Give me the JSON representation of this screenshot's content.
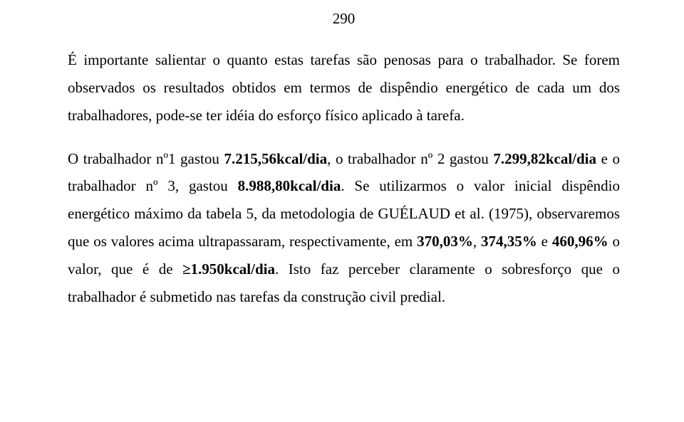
{
  "page_number": "290",
  "paragraph1": "É importante salientar o quanto estas tarefas são penosas para o trabalhador. Se forem observados os resultados obtidos em termos de dispêndio energético de cada um dos trabalhadores, pode-se ter idéia do esforço físico aplicado à tarefa.",
  "p2_t1": "O trabalhador nº1 gastou ",
  "p2_b1": "7.215,56kcal/dia",
  "p2_t2": ", o trabalhador nº 2 gastou ",
  "p2_b2": "7.299,82kcal/dia",
  "p2_t3": " e o trabalhador nº 3, gastou ",
  "p2_b3": "8.988,80kcal/dia",
  "p2_t4": ". Se utilizarmos o valor inicial dispêndio energético máximo da tabela 5, da metodologia de GUÉLAUD et al. (1975), observaremos que os valores acima ultrapassaram, respectivamente, em ",
  "p2_b4": "370,03%",
  "p2_t5": ", ",
  "p2_b5": "374,35%",
  "p2_t6": " e ",
  "p2_b6": "460,96%",
  "p2_t7": " o valor, que é de ",
  "p2_b7": "≥1.950kcal/dia",
  "p2_t8": ". Isto faz perceber claramente o sobresforço que o trabalhador é submetido nas tarefas da construção civil predial."
}
